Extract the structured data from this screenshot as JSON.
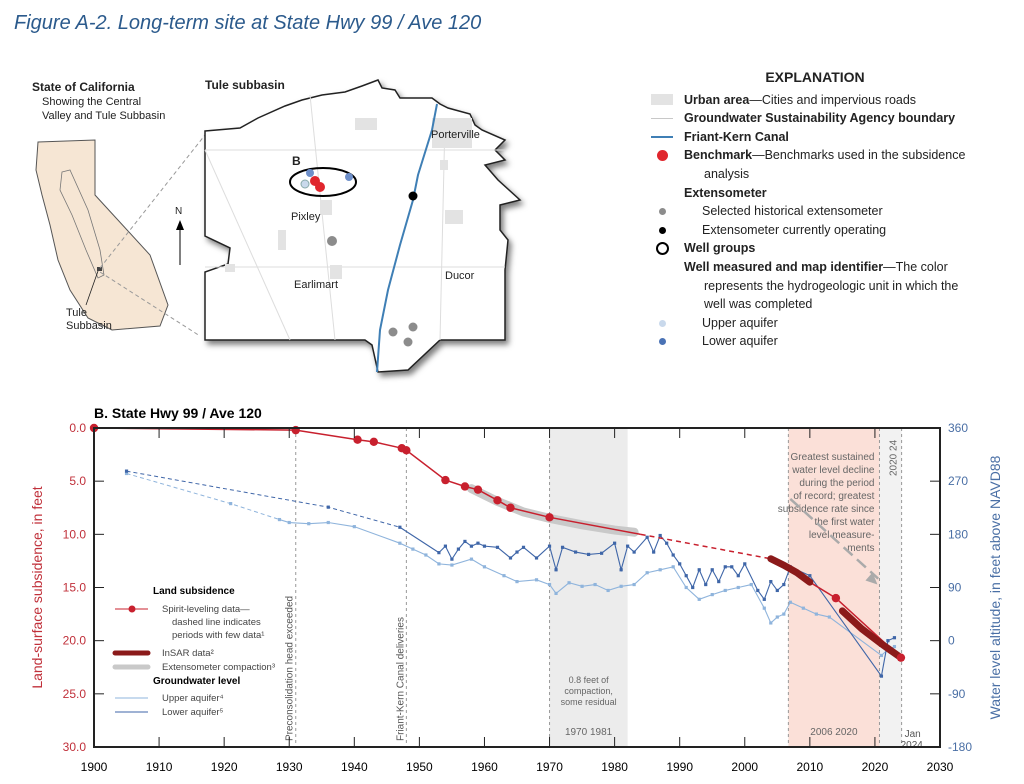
{
  "figure_title": "Figure A-2. Long-term site at State Hwy 99 / Ave 120",
  "map": {
    "state_title": "State of California",
    "state_subtitle_1": "Showing the Central",
    "state_subtitle_2": "Valley and Tule Subbasin",
    "tule_label_1": "Tule",
    "tule_label_2": "Subbasin",
    "subbasin_title": "Tule subbasin",
    "north_label": "N",
    "site_label": "B",
    "towns": [
      "Porterville",
      "Pixley",
      "Earlimart",
      "Ducor"
    ]
  },
  "explanation": {
    "title": "EXPLANATION",
    "items": [
      {
        "bold": "Urban area",
        "text": "—Cities and impervious roads",
        "symbol": "urban-swatch",
        "color": "#e3e3e3"
      },
      {
        "bold": "Groundwater Sustainability Agency boundary",
        "text": "",
        "symbol": "gsa-line",
        "color": "#c8c8c8"
      },
      {
        "bold": "Friant-Kern Canal",
        "text": "",
        "symbol": "canal-line",
        "color": "#3f7fb5"
      },
      {
        "bold": "Benchmark",
        "text": "—Benchmarks used in the subsidence",
        "cont": "analysis",
        "symbol": "red-dot",
        "color": "#e0262d"
      },
      {
        "bold": "Extensometer",
        "text": ""
      },
      {
        "bold": "",
        "text": "Selected historical extensometer",
        "symbol": "grey-dot",
        "color": "#8c8c8c"
      },
      {
        "bold": "",
        "text": "Extensometer currently operating",
        "symbol": "black-dot",
        "color": "#000000"
      },
      {
        "bold": "Well groups",
        "text": "",
        "symbol": "open-circle"
      },
      {
        "bold": "Well measured and map identifier",
        "text": "—The color",
        "cont": "represents the hydrogeologic unit in which the",
        "cont2": "well was completed"
      },
      {
        "bold": "",
        "text": "Upper aquifer",
        "symbol": "upper-dot",
        "color": "#c9d9ec"
      },
      {
        "bold": "",
        "text": "Lower aquifer",
        "symbol": "lower-dot",
        "color": "#4a72b5"
      }
    ]
  },
  "chart_data": {
    "type": "line",
    "title": "B. State Hwy 99 / Ave 120",
    "xlabel": "",
    "ylabel": "Land-surface subsidence, in feet",
    "y2label": "Water level altitude, in feet above NAVD88",
    "xlim": [
      1900,
      2030
    ],
    "ylim": [
      0,
      30
    ],
    "y_inverted": true,
    "y2lim": [
      -180,
      360
    ],
    "x_ticks": [
      1900,
      1910,
      1920,
      1930,
      1940,
      1950,
      1960,
      1970,
      1980,
      1990,
      2000,
      2010,
      2020,
      2030
    ],
    "y_ticks": [
      "0.0",
      "5.0",
      "10.0",
      "15.0",
      "20.0",
      "25.0",
      "30.0"
    ],
    "y2_ticks": [
      "360",
      "270",
      "180",
      "90",
      "0",
      "-90",
      "-180"
    ],
    "grid": false,
    "colors": {
      "subsidence": "#c8202e",
      "insar": "#8b1a1a",
      "extensometer": "#c9c9c9",
      "upper": "#8fb4dc",
      "lower": "#3f66a8",
      "left_axis": "#c0303a",
      "right_axis": "#4a6fa5",
      "pink_band": "#fbe0d8",
      "grey_band": "#ececec"
    },
    "series": [
      {
        "name": "Spirit-leveling data—dashed line indicates periods with few data¹",
        "axis": "left",
        "x": [
          1900,
          1931,
          1940.5,
          1943,
          1947.3,
          1948,
          1954,
          1957,
          1959,
          1962,
          1964,
          1970
        ],
        "y": [
          0,
          0.2,
          1.1,
          1.3,
          1.9,
          2.1,
          4.9,
          5.5,
          5.8,
          6.8,
          7.5,
          8.4
        ],
        "solid_to": [
          1984,
          10.0
        ],
        "dashed_to": [
          2004,
          12.3
        ],
        "later_x": [
          2014,
          2024
        ],
        "later_y": [
          16.0,
          21.6
        ]
      },
      {
        "name": "InSAR data²",
        "axis": "left",
        "segments": [
          {
            "x": [
              2004,
              2006,
              2008,
              2010
            ],
            "y": [
              12.3,
              12.9,
              13.6,
              14.5
            ]
          },
          {
            "x": [
              2015,
              2018,
              2021,
              2024
            ],
            "y": [
              17.2,
              18.9,
              20.3,
              21.6
            ]
          }
        ]
      },
      {
        "name": "Extensometer compaction³",
        "axis": "left",
        "x": [
          1958,
          1962,
          1966,
          1970,
          1975,
          1980,
          1983
        ],
        "y": [
          5.7,
          6.9,
          7.9,
          8.5,
          9.1,
          9.6,
          9.8
        ]
      },
      {
        "name": "Upper aquifer⁴",
        "axis": "right",
        "x": [
          1905,
          1921,
          1928.5,
          1930,
          1933,
          1936,
          1940,
          1947,
          1949,
          1951,
          1953,
          1955,
          1958,
          1960,
          1963,
          1965,
          1968,
          1970,
          1971,
          1973,
          1975,
          1977,
          1979,
          1981,
          1983,
          1985,
          1987,
          1989,
          1991,
          1993,
          1995,
          1997,
          1999,
          2001,
          2003,
          2004,
          2005,
          2006,
          2007,
          2009,
          2011,
          2013,
          2021,
          2022,
          2023
        ],
        "y": [
          283,
          232,
          205,
          200,
          198,
          200,
          193,
          165,
          155,
          145,
          130,
          128,
          138,
          125,
          110,
          100,
          103,
          95,
          80,
          98,
          92,
          95,
          85,
          92,
          95,
          115,
          120,
          125,
          90,
          70,
          78,
          85,
          90,
          95,
          55,
          30,
          40,
          45,
          65,
          55,
          45,
          40,
          -25,
          -15,
          -10
        ]
      },
      {
        "name": "Lower aquifer⁵",
        "axis": "right",
        "x": [
          1905,
          1936,
          1947,
          1953,
          1954,
          1955,
          1956,
          1957,
          1958,
          1959,
          1960,
          1962,
          1964,
          1965,
          1966,
          1968,
          1970,
          1971,
          1972,
          1974,
          1976,
          1978,
          1980,
          1981,
          1982,
          1983,
          1985,
          1986,
          1987,
          1988,
          1989,
          1990,
          1991,
          1992,
          1993,
          1994,
          1995,
          1996,
          1997,
          1998,
          1999,
          2000,
          2002,
          2003,
          2004,
          2005,
          2006,
          2007,
          2010,
          2021,
          2022,
          2023
        ],
        "y": [
          287,
          226,
          192,
          149,
          160,
          138,
          155,
          168,
          160,
          165,
          160,
          158,
          140,
          150,
          158,
          140,
          160,
          120,
          158,
          150,
          146,
          148,
          165,
          120,
          160,
          150,
          175,
          150,
          178,
          165,
          145,
          130,
          110,
          90,
          120,
          95,
          120,
          100,
          125,
          125,
          110,
          130,
          85,
          70,
          100,
          85,
          95,
          125,
          110,
          -60,
          0,
          5
        ]
      }
    ],
    "legend": {
      "placement": "bottom-left",
      "group1": "Land subsidence",
      "group2": "Groundwater level"
    },
    "bands": [
      {
        "from": 1970,
        "to": 1982,
        "label_years": "1970  1981",
        "note": [
          "0.8 feet of",
          "compaction,",
          "some residual"
        ]
      },
      {
        "from": 2006.7,
        "to": 2020.7,
        "label_years": "2006  2020",
        "note": [
          "Greatest sustained",
          "water level decline",
          "during the period",
          "of record; greatest",
          "subsidence rate since",
          "the first water",
          "level measure-",
          "ments"
        ]
      },
      {
        "from": 2020.7,
        "to": 2024.1,
        "label_years": "2020  24"
      }
    ],
    "annotations": [
      {
        "x": 1931,
        "text": "Preconsolidation head exceeded"
      },
      {
        "x": 1948,
        "text": "Friant-Kern Canal deliveries"
      },
      {
        "x": 2024.1,
        "text": [
          "Jan",
          "2024"
        ]
      }
    ]
  }
}
